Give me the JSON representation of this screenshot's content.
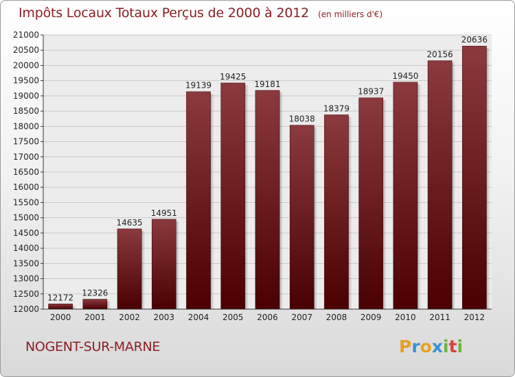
{
  "title": "Impôts Locaux Totaux Perçus de 2000 à 2012",
  "unit_note": "(en milliers d'€)",
  "location": "NOGENT-SUR-MARNE",
  "logo": {
    "letters": [
      "P",
      "r",
      "o",
      "x",
      "i",
      "t",
      "i"
    ],
    "colors": [
      "#e8a021",
      "#3b8fd1",
      "#e8a021",
      "#3b8fd1",
      "#6db33f",
      "#e0403a",
      "#6db33f"
    ]
  },
  "colors": {
    "bar_top": "#8b3a3e",
    "bar_bottom": "#4a0000",
    "title": "#8b1e24"
  },
  "chart_data": {
    "type": "bar",
    "categories": [
      "2000",
      "2001",
      "2002",
      "2003",
      "2004",
      "2005",
      "2006",
      "2007",
      "2008",
      "2009",
      "2010",
      "2011",
      "2012"
    ],
    "values": [
      12172,
      12326,
      14635,
      14951,
      19139,
      19425,
      19181,
      18038,
      18379,
      18937,
      19450,
      20156,
      20636
    ],
    "ylim": [
      12000,
      21000
    ],
    "yticks": [
      12000,
      12500,
      13000,
      13500,
      14000,
      14500,
      15000,
      15500,
      16000,
      16500,
      17000,
      17500,
      18000,
      18500,
      19000,
      19500,
      20000,
      20500,
      21000
    ],
    "grid": true
  }
}
